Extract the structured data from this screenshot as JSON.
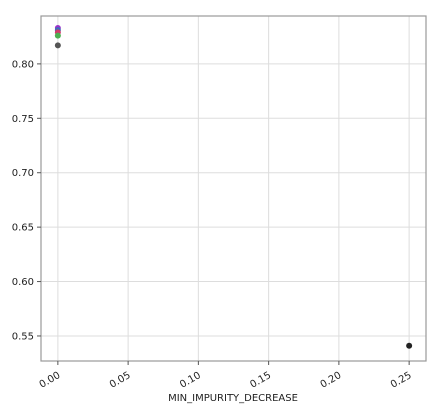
{
  "chart_data": {
    "type": "scatter",
    "title": "",
    "xlabel": "MIN_IMPURITY_DECREASE",
    "ylabel": "",
    "xlim": [
      -0.012,
      0.262
    ],
    "ylim": [
      0.527,
      0.844
    ],
    "xticks": [
      0.0,
      0.05,
      0.1,
      0.15,
      0.2,
      0.25
    ],
    "xtick_labels": [
      "0.00",
      "0.05",
      "0.10",
      "0.15",
      "0.20",
      "0.25"
    ],
    "yticks": [
      0.55,
      0.6,
      0.65,
      0.7,
      0.75,
      0.8
    ],
    "ytick_labels": [
      "0.55",
      "0.60",
      "0.65",
      "0.70",
      "0.75",
      "0.80"
    ],
    "grid": true,
    "legend": false,
    "points": [
      {
        "x": 0.0,
        "y": 0.833,
        "color": "#9932cc"
      },
      {
        "x": 0.0,
        "y": 0.831,
        "color": "#3b6fb6"
      },
      {
        "x": 0.0,
        "y": 0.829,
        "color": "#d03a6a"
      },
      {
        "x": 0.0,
        "y": 0.826,
        "color": "#4caf50"
      },
      {
        "x": 0.0,
        "y": 0.817,
        "color": "#555555"
      },
      {
        "x": 0.25,
        "y": 0.541,
        "color": "#222222"
      }
    ]
  }
}
